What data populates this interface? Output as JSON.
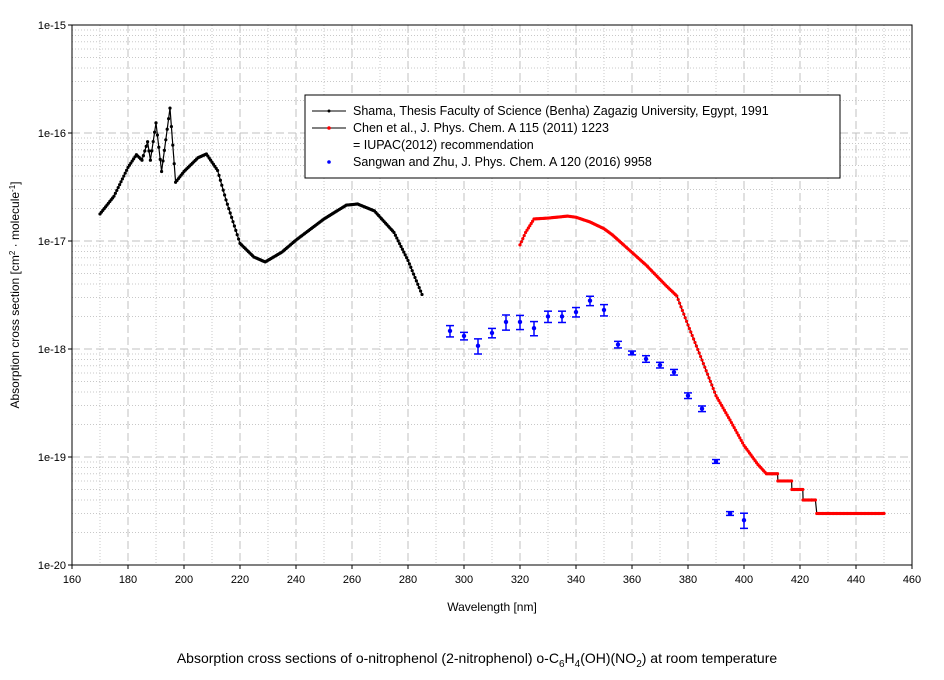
{
  "chart_data": {
    "type": "scatter",
    "title": "",
    "caption": {
      "p1": "Absorption cross sections of o-nitrophenol (2-nitrophenol) o-C",
      "s1": "6",
      "p2": "H",
      "s2": "4",
      "p3": "(OH)(NO",
      "s3": "2",
      "p4": ") at room temperature"
    },
    "xlabel": "Wavelength [nm]",
    "ylabel": {
      "p1": "Absorption cross section [cm",
      "s1": "2",
      "p2": " · molecule",
      "s2": "-1",
      "p3": "]"
    },
    "xlim": [
      160,
      460
    ],
    "ylim": [
      1e-20,
      1e-15
    ],
    "yscale": "log",
    "grid": true,
    "legend_position": "top-right",
    "x_ticks": [
      "160",
      "180",
      "200",
      "220",
      "240",
      "260",
      "280",
      "300",
      "320",
      "340",
      "360",
      "380",
      "400",
      "420",
      "440",
      "460"
    ],
    "y_ticks": [
      "1e-20",
      "1e-19",
      "1e-18",
      "1e-17",
      "1e-16",
      "1e-15"
    ],
    "series": [
      {
        "name": "Shama, Thesis Faculty of Science (Benha) Zagazig University, Egypt, 1991",
        "color": "#000000",
        "style": "line-markers",
        "x": [
          170,
          175,
          180,
          183,
          185,
          187,
          188,
          190,
          192,
          195,
          197,
          200,
          205,
          208,
          212,
          215,
          220,
          225,
          229,
          235,
          240,
          250,
          258,
          262,
          268,
          275,
          280,
          285
        ],
        "y": [
          1.78e-17,
          2.6e-17,
          4.8e-17,
          6.3e-17,
          5.6e-17,
          8.3e-17,
          5.6e-17,
          1.24e-16,
          4.4e-17,
          1.7e-16,
          3.5e-17,
          4.4e-17,
          5.9e-17,
          6.4e-17,
          4.5e-17,
          2.4e-17,
          9.5e-18,
          7.1e-18,
          6.4e-18,
          7.9e-18,
          1.02e-17,
          1.6e-17,
          2.15e-17,
          2.2e-17,
          1.9e-17,
          1.2e-17,
          6.6e-18,
          3.2e-18
        ]
      },
      {
        "name": "Chen et al., J. Phys. Chem. A 115 (2011) 1223",
        "name2": "= IUPAC(2012) recommendation",
        "color": "#ff0000",
        "style": "line-markers",
        "x": [
          320,
          322,
          325,
          330,
          337,
          340,
          345,
          350,
          353,
          357,
          365,
          372,
          376,
          380,
          385,
          390,
          395,
          400,
          405,
          408,
          412,
          412.1,
          417,
          417.1,
          421,
          421.1,
          424,
          424.1,
          425.5,
          426,
          430,
          440,
          450
        ],
        "y": [
          9.2e-18,
          1.2e-17,
          1.6e-17,
          1.63e-17,
          1.7e-17,
          1.66e-17,
          1.5e-17,
          1.3e-17,
          1.14e-17,
          9.2e-18,
          6e-18,
          3.9e-18,
          3.1e-18,
          1.67e-18,
          7.9e-19,
          3.7e-19,
          2.2e-19,
          1.28e-19,
          8.5e-20,
          7e-20,
          7e-20,
          6e-20,
          6e-20,
          5e-20,
          5e-20,
          4e-20,
          4e-20,
          4e-20,
          4e-20,
          3e-20,
          3e-20,
          3e-20,
          3e-20
        ]
      },
      {
        "name": "Sangwan and Zhu, J. Phys. Chem. A 120 (2016) 9958",
        "color": "#0000ff",
        "style": "markers-errorbars",
        "x": [
          295,
          300,
          305,
          310,
          315,
          320,
          325,
          330,
          335,
          340,
          345,
          350,
          355,
          360,
          365,
          370,
          375,
          380,
          385,
          390,
          395,
          400
        ],
        "y": [
          1.47e-18,
          1.32e-18,
          1.07e-18,
          1.41e-18,
          1.78e-18,
          1.78e-18,
          1.56e-18,
          2e-18,
          2e-18,
          2.2e-18,
          2.8e-18,
          2.3e-18,
          1.1e-18,
          9.2e-19,
          8.1e-19,
          7.1e-19,
          6.1e-19,
          3.7e-19,
          2.8e-19,
          9.1e-20,
          3e-20,
          2.6e-20
        ],
        "rel_err": [
          0.12,
          0.08,
          0.16,
          0.1,
          0.16,
          0.15,
          0.15,
          0.12,
          0.12,
          0.1,
          0.1,
          0.12,
          0.07,
          0.04,
          0.07,
          0.06,
          0.06,
          0.06,
          0.06,
          0.04,
          0.04,
          0.16
        ]
      }
    ]
  }
}
